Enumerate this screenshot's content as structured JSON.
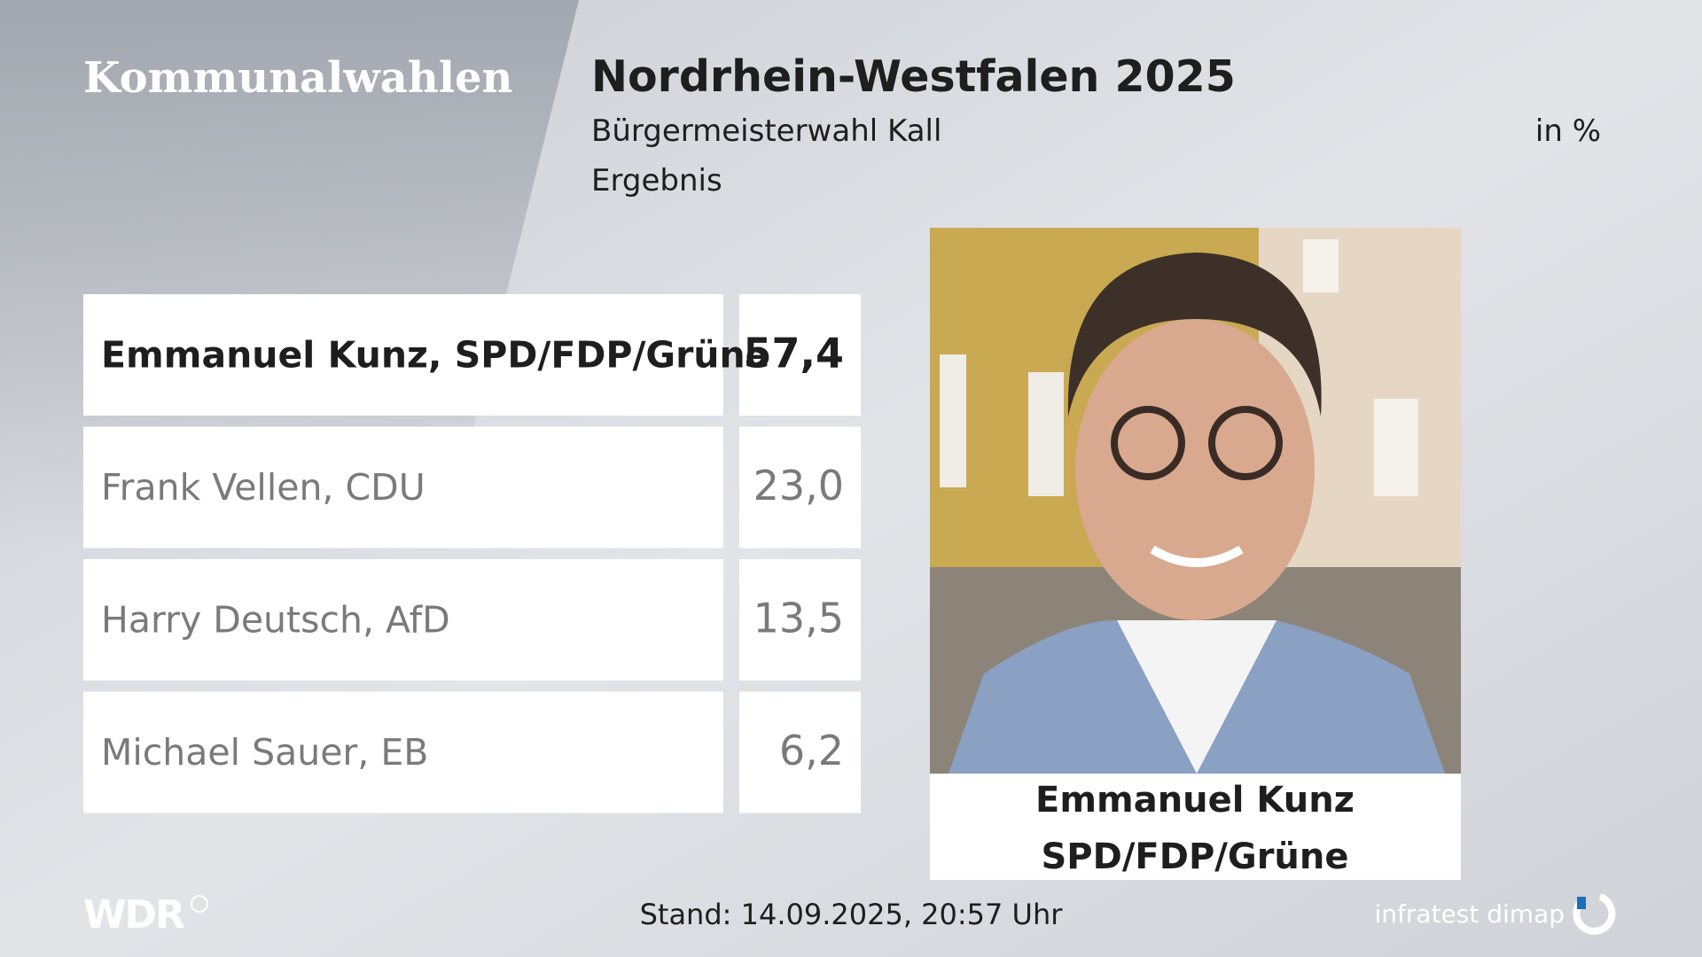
{
  "header": {
    "section": "Kommunalwahlen",
    "title": "Nordrhein-Westfalen 2025",
    "subtitle": "Bürgermeisterwahl Kall",
    "unit": "in %",
    "label": "Ergebnis"
  },
  "table": {
    "rows": [
      [
        "Emmanuel Kunz, SPD/FDP/Grüne",
        "57,4"
      ],
      [
        "Frank Vellen, CDU",
        "23,0"
      ],
      [
        "Harry Deutsch, AfD",
        "13,5"
      ],
      [
        "Michael Sauer, EB",
        "6,2"
      ]
    ]
  },
  "photo": {
    "caption": [
      "Emmanuel Kunz",
      "SPD/FDP/Grüne"
    ]
  },
  "footer": {
    "broadcaster": "WDR",
    "timestamp": "Stand: 14.09.2025, 20:57 Uhr",
    "source": "infratest dimap"
  }
}
